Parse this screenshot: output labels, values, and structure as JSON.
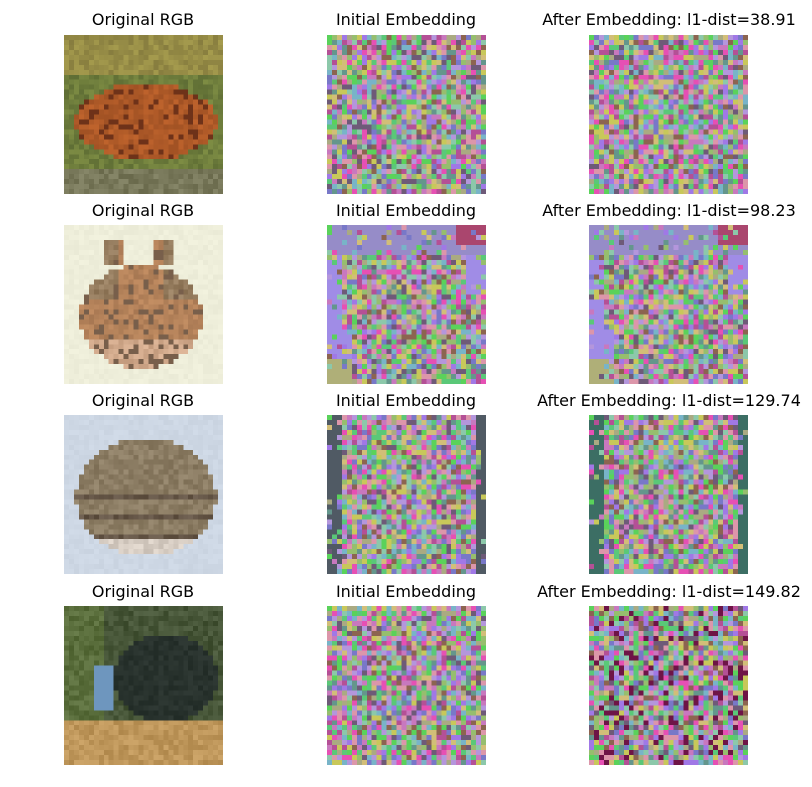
{
  "figure": {
    "rows": [
      {
        "panels": [
          {
            "title": "Original RGB",
            "image": "frog-photo",
            "kind": "original"
          },
          {
            "title": "Initial Embedding",
            "image": "noise-embedding",
            "kind": "noise"
          },
          {
            "title": "After Embedding: l1-dist=38.91",
            "image": "noise-embedding-after",
            "kind": "noise-after"
          }
        ]
      },
      {
        "panels": [
          {
            "title": "Original RGB",
            "image": "cat-photo",
            "kind": "original"
          },
          {
            "title": "Initial Embedding",
            "image": "noise-embedding",
            "kind": "noise"
          },
          {
            "title": "After Embedding: l1-dist=98.23",
            "image": "noise-embedding-after",
            "kind": "noise-after"
          }
        ]
      },
      {
        "panels": [
          {
            "title": "Original RGB",
            "image": "cat-photo",
            "kind": "original"
          },
          {
            "title": "Initial Embedding",
            "image": "noise-embedding",
            "kind": "noise"
          },
          {
            "title": "After Embedding: l1-dist=129.74",
            "image": "noise-embedding-after",
            "kind": "noise-after"
          }
        ]
      },
      {
        "panels": [
          {
            "title": "Original RGB",
            "image": "bird-photo",
            "kind": "original"
          },
          {
            "title": "Initial Embedding",
            "image": "noise-embedding",
            "kind": "noise"
          },
          {
            "title": "After Embedding: l1-dist=149.82",
            "image": "noise-embedding-after",
            "kind": "noise-after"
          }
        ]
      }
    ]
  },
  "colors": {
    "background": "#ffffff",
    "text": "#000000"
  }
}
